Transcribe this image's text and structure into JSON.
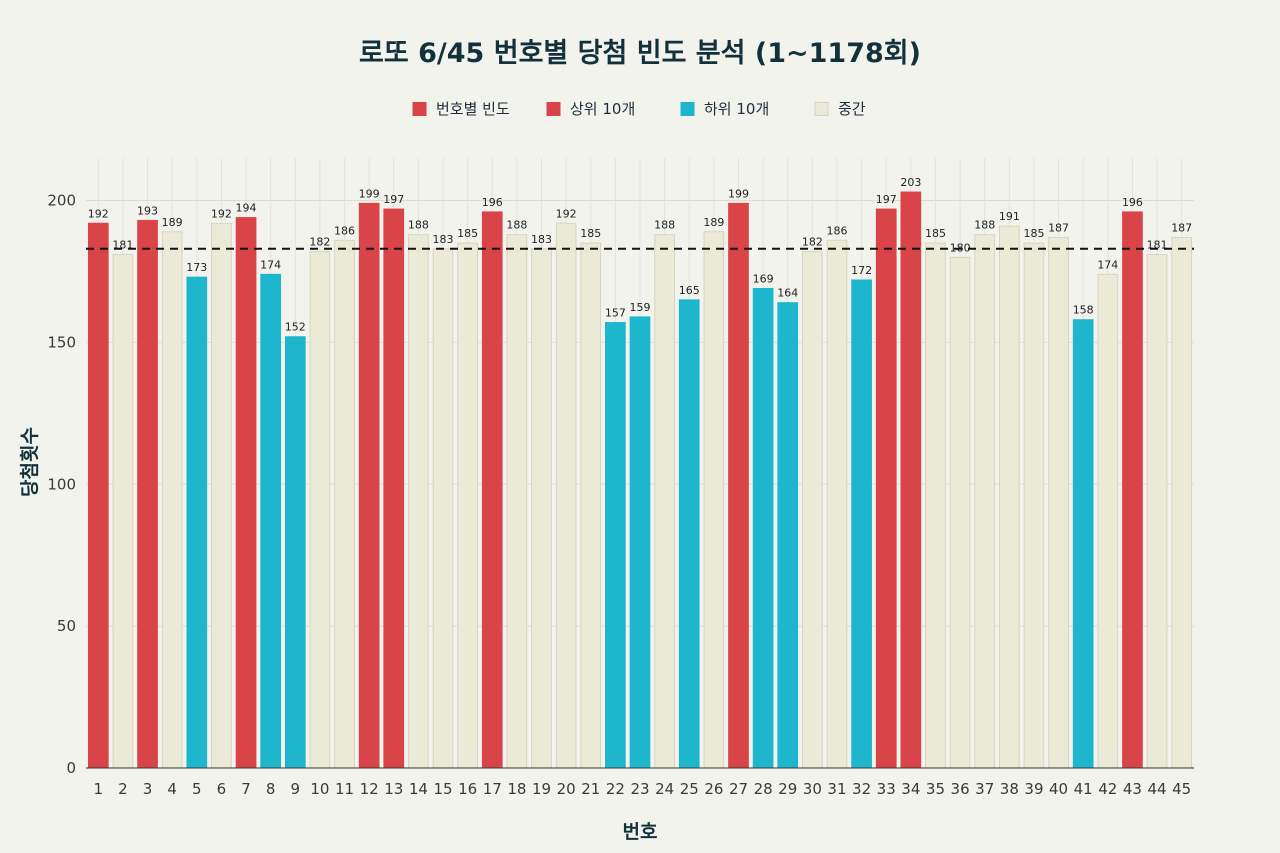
{
  "chart_data": {
    "type": "bar",
    "title": "로또 6/45 번호별 당첨 빈도 분석 (1~1178회)",
    "xlabel": "번호",
    "ylabel": "당첨횟수",
    "ylim": [
      0,
      215
    ],
    "yticks": [
      0,
      50,
      100,
      150,
      200
    ],
    "grid": true,
    "legend_position": "top-center",
    "legend": [
      {
        "label": "번호별 빈도",
        "color": "#d94448"
      },
      {
        "label": "상위 10개",
        "color": "#d94448"
      },
      {
        "label": "하위 10개",
        "color": "#1eb6cc"
      },
      {
        "label": "중간",
        "color": "#ebead6"
      }
    ],
    "average_line": 183,
    "categories": [
      "1",
      "2",
      "3",
      "4",
      "5",
      "6",
      "7",
      "8",
      "9",
      "10",
      "11",
      "12",
      "13",
      "14",
      "15",
      "16",
      "17",
      "18",
      "19",
      "20",
      "21",
      "22",
      "23",
      "24",
      "25",
      "26",
      "27",
      "28",
      "29",
      "30",
      "31",
      "32",
      "33",
      "34",
      "35",
      "36",
      "37",
      "38",
      "39",
      "40",
      "41",
      "42",
      "43",
      "44",
      "45"
    ],
    "values": [
      192,
      181,
      193,
      189,
      173,
      192,
      194,
      174,
      152,
      182,
      186,
      199,
      197,
      188,
      183,
      185,
      196,
      188,
      183,
      192,
      185,
      157,
      159,
      188,
      165,
      189,
      199,
      169,
      164,
      182,
      186,
      172,
      197,
      203,
      185,
      180,
      188,
      191,
      185,
      187,
      158,
      174,
      196,
      181,
      187
    ],
    "groups": [
      "top",
      "mid",
      "top",
      "mid",
      "bottom",
      "mid",
      "top",
      "bottom",
      "bottom",
      "mid",
      "mid",
      "top",
      "top",
      "mid",
      "mid",
      "mid",
      "top",
      "mid",
      "mid",
      "mid",
      "mid",
      "bottom",
      "bottom",
      "mid",
      "bottom",
      "mid",
      "top",
      "bottom",
      "bottom",
      "mid",
      "mid",
      "bottom",
      "top",
      "top",
      "mid",
      "mid",
      "mid",
      "mid",
      "mid",
      "mid",
      "bottom",
      "mid",
      "top",
      "mid",
      "mid"
    ],
    "group_colors": {
      "top": "#d94448",
      "bottom": "#1eb6cc",
      "mid": "#ebead6"
    },
    "group_stroke": {
      "top": "#d94448",
      "bottom": "#1eb6cc",
      "mid": "#d6d4c0"
    }
  }
}
